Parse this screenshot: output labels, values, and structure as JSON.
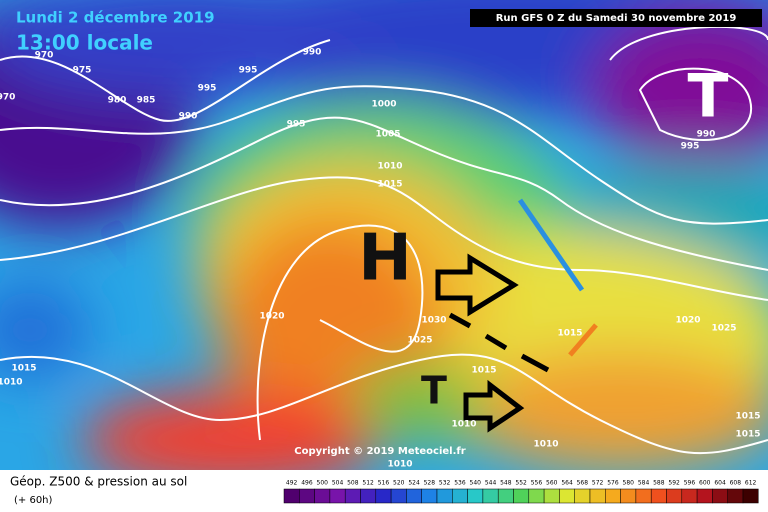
{
  "header": {
    "date": "Lundi 2 décembre 2019",
    "time": "13:00 locale",
    "run": "Run GFS 0 Z du Samedi 30 novembre 2019"
  },
  "map": {
    "copyright": "Copyright © 2019 Meteociel.fr",
    "isobar_labels": [
      "970",
      "970",
      "975",
      "980",
      "985",
      "990",
      "995",
      "995",
      "990",
      "995",
      "1000",
      "1005",
      "1010",
      "1015",
      "1020",
      "1030",
      "1025",
      "1015",
      "1015",
      "1020",
      "1025",
      "1015",
      "1010",
      "990",
      "995",
      "1010",
      "1010",
      "1010",
      "1015",
      "1015"
    ],
    "pressure_centers": [
      "H",
      "T",
      "T"
    ]
  },
  "footer": {
    "title": "Géop. Z500 & pression au sol",
    "lead": "(+ 60h)",
    "scale": [
      492,
      496,
      500,
      504,
      508,
      512,
      516,
      520,
      524,
      528,
      532,
      536,
      540,
      544,
      548,
      552,
      556,
      560,
      564,
      568,
      572,
      576,
      580,
      584,
      588,
      592,
      596,
      600,
      604,
      608,
      612
    ]
  }
}
